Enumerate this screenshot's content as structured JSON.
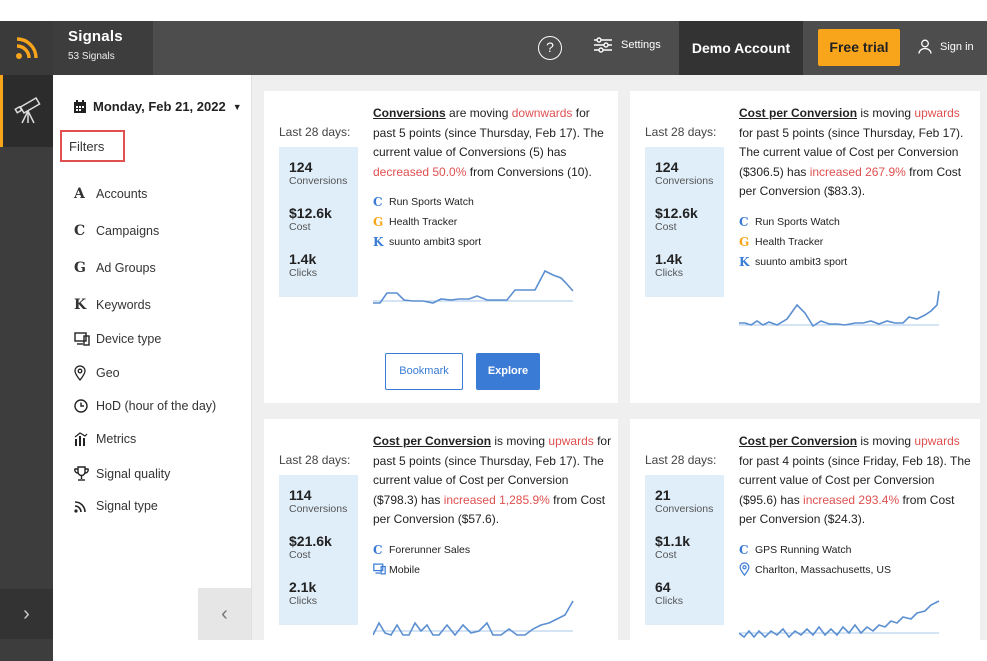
{
  "header": {
    "app_title": "Signals",
    "app_subtitle": "53 Signals",
    "help": "?",
    "settings": "Settings",
    "account": "Demo Account",
    "free_trial": "Free trial",
    "sign_in": "Sign in"
  },
  "panel": {
    "date": "Monday, Feb 21, 2022",
    "filters_label": "Filters",
    "filters": [
      {
        "icon": "A",
        "label": "Accounts"
      },
      {
        "icon": "C",
        "label": "Campaigns"
      },
      {
        "icon": "G",
        "label": "Ad Groups"
      },
      {
        "icon": "K",
        "label": "Keywords"
      },
      {
        "icon": "device-icon",
        "label": "Device type"
      },
      {
        "icon": "geo-pin-icon",
        "label": "Geo"
      },
      {
        "icon": "clock-icon",
        "label": "HoD (hour of the day)"
      },
      {
        "icon": "metrics-icon",
        "label": "Metrics"
      },
      {
        "icon": "trophy-icon",
        "label": "Signal quality"
      },
      {
        "icon": "rss-icon",
        "label": "Signal type"
      }
    ]
  },
  "cards": [
    {
      "period": "Last 28 days:",
      "stats": [
        {
          "value": "124",
          "label": "Conversions"
        },
        {
          "value": "$12.6k",
          "label": "Cost"
        },
        {
          "value": "1.4k",
          "label": "Clicks"
        }
      ],
      "metric": "Conversions",
      "t1": " are moving ",
      "dir": "downwards",
      "t2": " for past 5 points (since Thursday, Feb 17). The current value of Conversions (5) has ",
      "change": "decreased 50.0%",
      "t3": " from Conversions (10).",
      "entities": [
        {
          "icon": "C",
          "label": "Run Sports Watch"
        },
        {
          "icon": "G",
          "label": "Health Tracker"
        },
        {
          "icon": "K",
          "label": "suunto ambit3 sport"
        }
      ],
      "bookmark": "Bookmark",
      "explore": "Explore"
    },
    {
      "period": "Last 28 days:",
      "stats": [
        {
          "value": "124",
          "label": "Conversions"
        },
        {
          "value": "$12.6k",
          "label": "Cost"
        },
        {
          "value": "1.4k",
          "label": "Clicks"
        }
      ],
      "metric": "Cost per Conversion",
      "t1": " is moving ",
      "dir": "upwards",
      "t2": " for past 5 points (since Thursday, Feb 17). The current value of Cost per Conversion ($306.5) has ",
      "change": "increased 267.9%",
      "t3": " from Cost per Conversion ($83.3).",
      "entities": [
        {
          "icon": "C",
          "label": "Run Sports Watch"
        },
        {
          "icon": "G",
          "label": "Health Tracker"
        },
        {
          "icon": "K",
          "label": "suunto ambit3 sport"
        }
      ]
    },
    {
      "period": "Last 28 days:",
      "stats": [
        {
          "value": "114",
          "label": "Conversions"
        },
        {
          "value": "$21.6k",
          "label": "Cost"
        },
        {
          "value": "2.1k",
          "label": "Clicks"
        }
      ],
      "metric": "Cost per Conversion",
      "t1": " is moving ",
      "dir": "upwards",
      "t2": " for past 5 points (since Thursday, Feb 17). The current value of Cost per Conversion ($798.3) has ",
      "change": "increased 1,285.9%",
      "t3": " from Cost per Conversion ($57.6).",
      "entities": [
        {
          "icon": "C",
          "label": "Forerunner Sales"
        },
        {
          "icon": "device-icon",
          "label": "Mobile"
        }
      ]
    },
    {
      "period": "Last 28 days:",
      "stats": [
        {
          "value": "21",
          "label": "Conversions"
        },
        {
          "value": "$1.1k",
          "label": "Cost"
        },
        {
          "value": "64",
          "label": "Clicks"
        }
      ],
      "metric": "Cost per Conversion",
      "t1": " is moving ",
      "dir": "upwards",
      "t2": " for past 4 points (since Friday, Feb 18). The current value of Cost per Conversion ($95.6) has ",
      "change": "increased 293.4%",
      "t3": " from Cost per Conversion ($24.3).",
      "entities": [
        {
          "icon": "C",
          "label": "GPS Running Watch"
        },
        {
          "icon": "geo-pin-icon",
          "label": "Charlton, Massachusetts, US"
        }
      ]
    }
  ],
  "colors": {
    "accent": "#f8a51c",
    "primary": "#3a7bd5",
    "negative": "#e05050",
    "stat_bg": "#e0eef9"
  }
}
